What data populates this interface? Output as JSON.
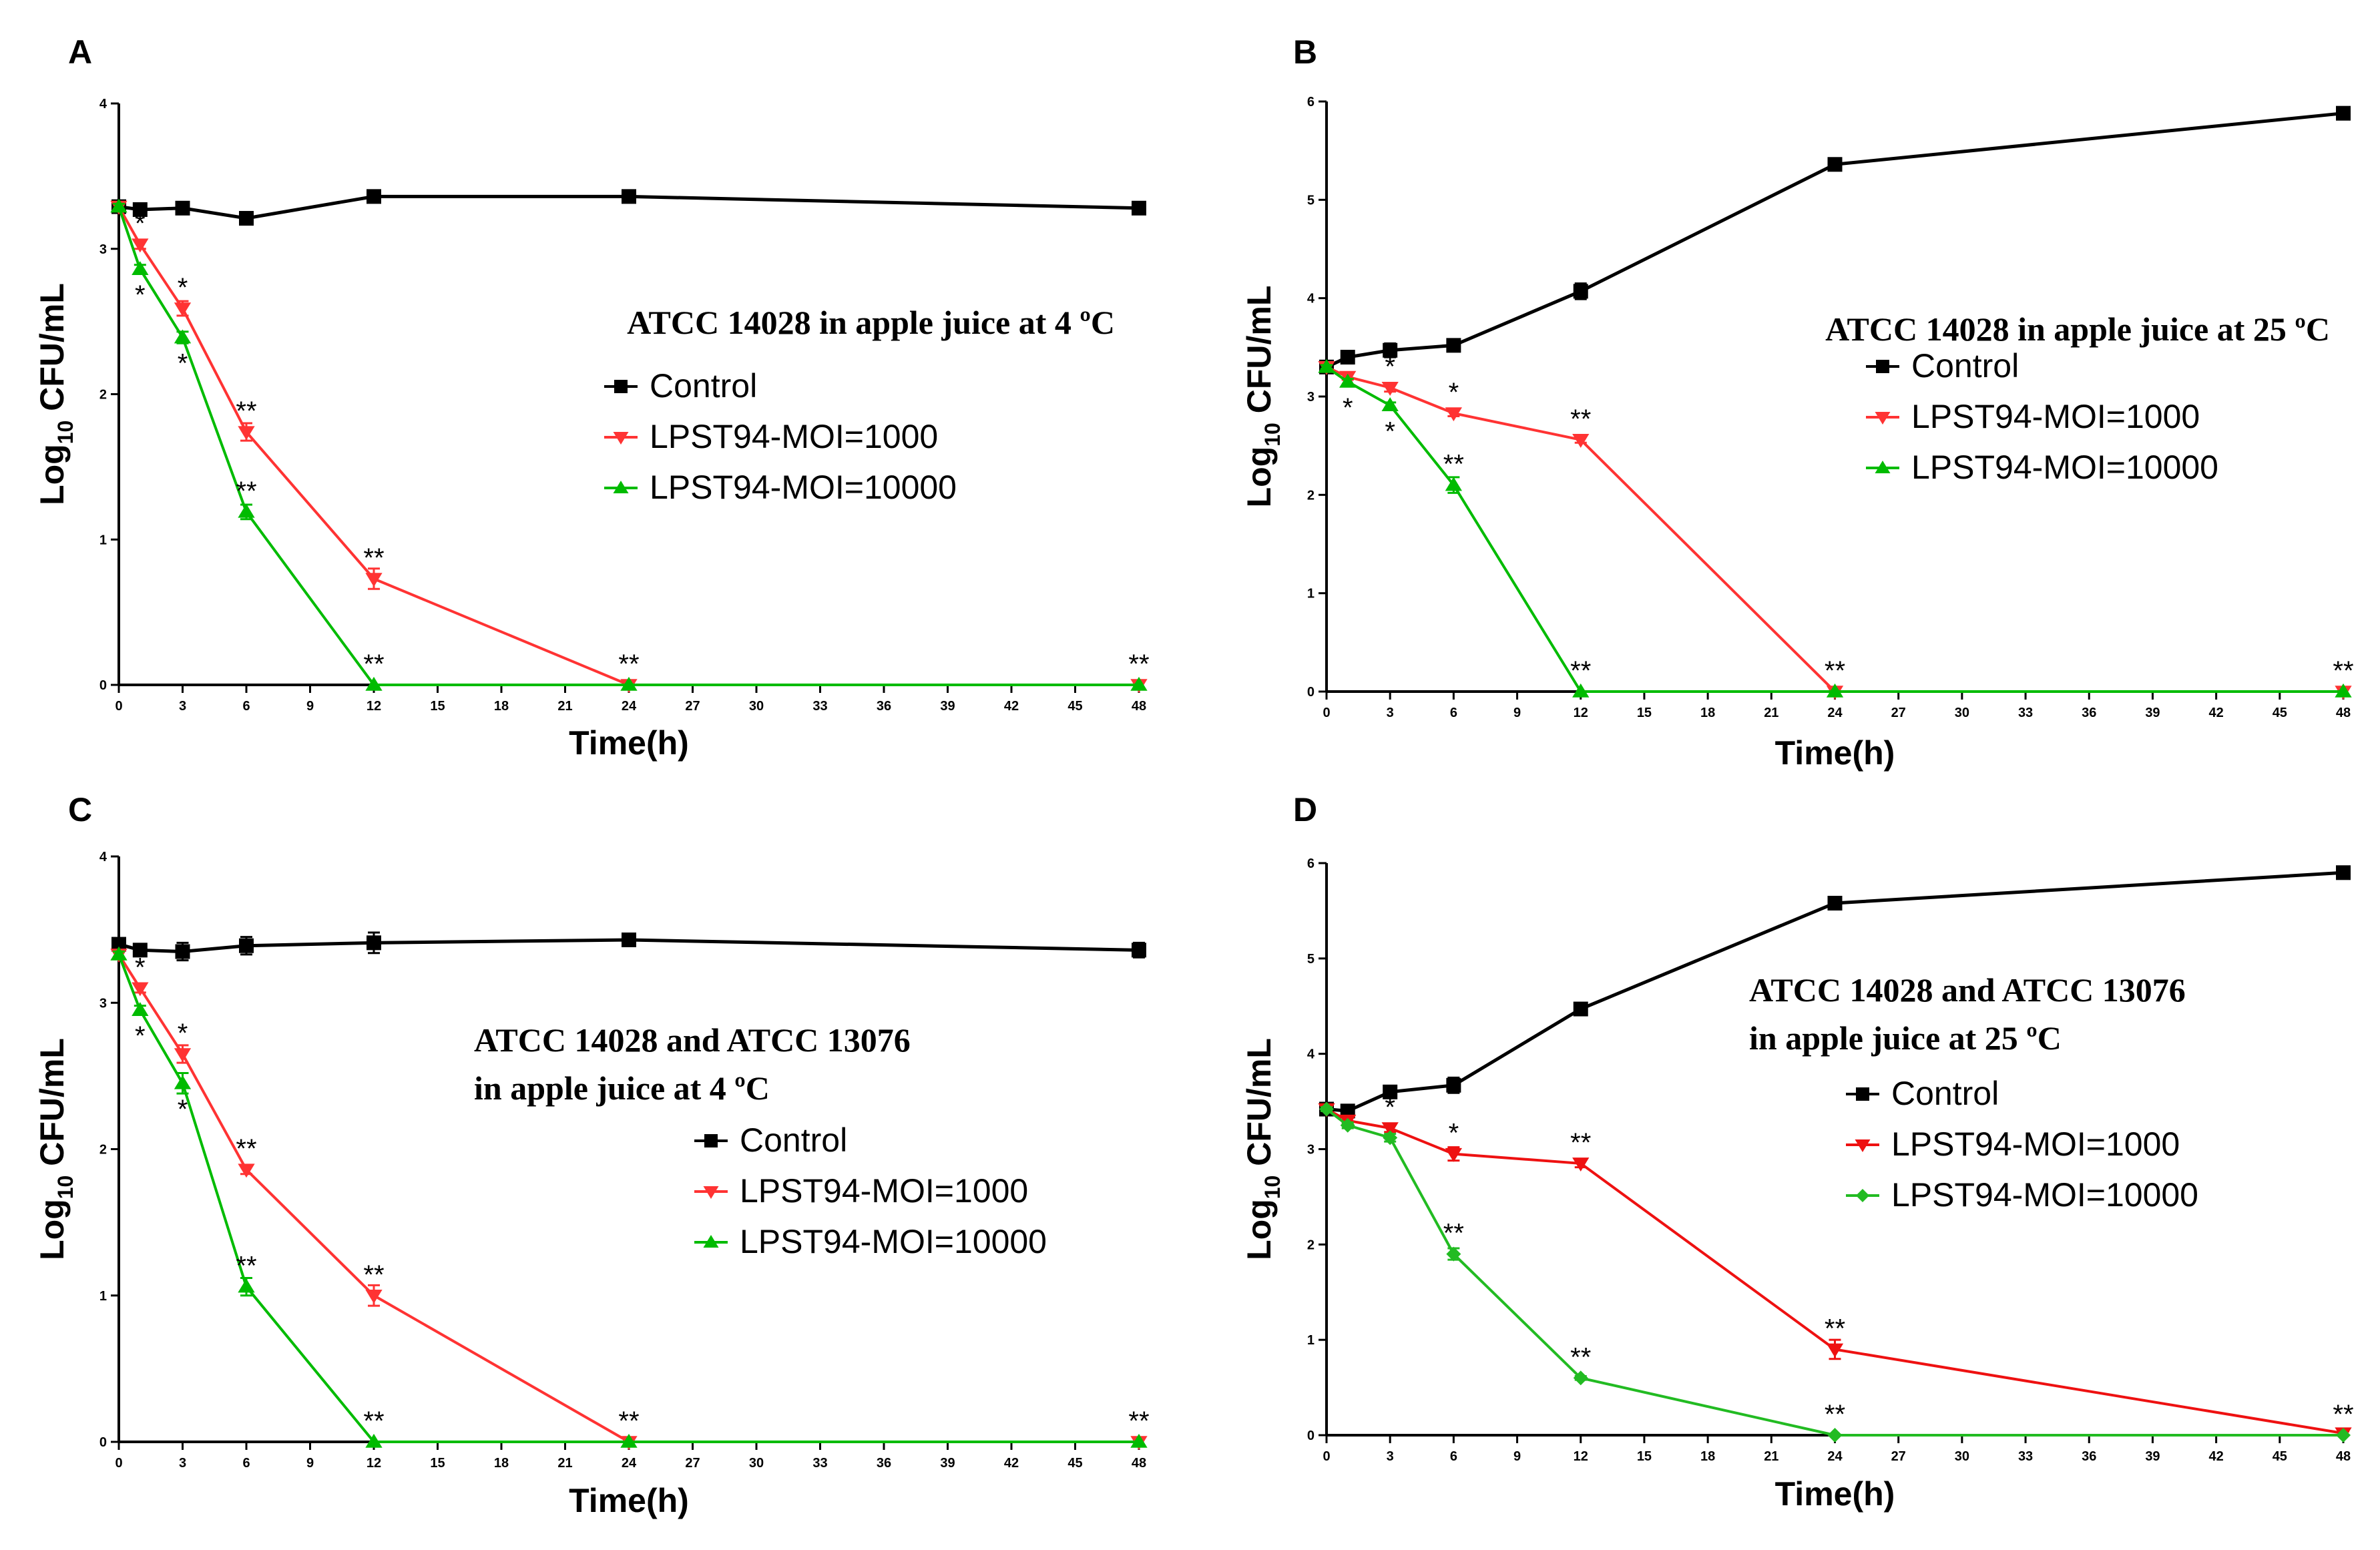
{
  "chart_data": [
    {
      "panel": "A",
      "type": "line",
      "title_lines": [
        "ATCC 14028 in apple juice at 4 ºC"
      ],
      "xlabel": "Time(h)",
      "ylabel": "Log10 CFU/mL",
      "ylabel_main": "Log",
      "ylabel_sub": "10",
      "ylabel_rest": " CFU/mL",
      "xlim": [
        0,
        48
      ],
      "ylim": [
        0,
        4
      ],
      "xticks": [
        0,
        3,
        6,
        9,
        12,
        15,
        18,
        21,
        24,
        27,
        30,
        33,
        36,
        39,
        42,
        45,
        48
      ],
      "yticks": [
        0,
        1,
        2,
        3,
        4
      ],
      "legend": [
        "Control",
        "LPST94-MOI=1000",
        "LPST94-MOI=10000"
      ],
      "series": [
        {
          "name": "Control",
          "color": "#000000",
          "marker": "square",
          "x": [
            0,
            1,
            3,
            6,
            12,
            24,
            48
          ],
          "y": [
            3.29,
            3.27,
            3.28,
            3.21,
            3.36,
            3.36,
            3.28
          ],
          "err": [
            0.03,
            0.02,
            0.04,
            0.02,
            0.02,
            0.02,
            0.02
          ]
        },
        {
          "name": "LPST94-MOI=1000",
          "color": "#ff3333",
          "marker": "triangle-down",
          "x": [
            0,
            1,
            3,
            6,
            12,
            24,
            48
          ],
          "y": [
            3.29,
            3.03,
            2.59,
            1.74,
            0.73,
            0.0,
            0.0
          ],
          "err": [
            0.02,
            0.03,
            0.05,
            0.06,
            0.07,
            0.0,
            0.0
          ]
        },
        {
          "name": "LPST94-MOI=10000",
          "color": "#00bb00",
          "marker": "triangle-up",
          "x": [
            0,
            1,
            3,
            6,
            12,
            24,
            48
          ],
          "y": [
            3.29,
            2.86,
            2.39,
            1.19,
            0.0,
            0.0,
            0.0
          ],
          "err": [
            0.02,
            0.03,
            0.04,
            0.05,
            0.0,
            0.0,
            0.0
          ]
        }
      ],
      "annotations": [
        {
          "x": 1,
          "y": 3.03,
          "text": "*",
          "pos": "above"
        },
        {
          "x": 1,
          "y": 2.86,
          "text": "*",
          "pos": "below"
        },
        {
          "x": 3,
          "y": 2.59,
          "text": "*",
          "pos": "above"
        },
        {
          "x": 3,
          "y": 2.39,
          "text": "*",
          "pos": "below"
        },
        {
          "x": 6,
          "y": 1.74,
          "text": "**",
          "pos": "above"
        },
        {
          "x": 6,
          "y": 1.19,
          "text": "**",
          "pos": "above"
        },
        {
          "x": 12,
          "y": 0.73,
          "text": "**",
          "pos": "above"
        },
        {
          "x": 12,
          "y": 0,
          "text": "**",
          "pos": "above"
        },
        {
          "x": 24,
          "y": 0,
          "text": "**",
          "pos": "above"
        },
        {
          "x": 48,
          "y": 0,
          "text": "**",
          "pos": "above"
        }
      ]
    },
    {
      "panel": "B",
      "type": "line",
      "title_lines": [
        "ATCC 14028 in apple juice at 25 ºC"
      ],
      "xlabel": "Time(h)",
      "ylabel": "Log10 CFU/mL",
      "ylabel_main": "Log",
      "ylabel_sub": "10",
      "ylabel_rest": " CFU/mL",
      "xlim": [
        0,
        48
      ],
      "ylim": [
        0,
        6
      ],
      "xticks": [
        0,
        3,
        6,
        9,
        12,
        15,
        18,
        21,
        24,
        27,
        30,
        33,
        36,
        39,
        42,
        45,
        48
      ],
      "yticks": [
        0,
        1,
        2,
        3,
        4,
        5,
        6
      ],
      "legend": [
        "Control",
        "LPST94-MOI=1000",
        "LPST94-MOI=10000"
      ],
      "series": [
        {
          "name": "Control",
          "color": "#000000",
          "marker": "square",
          "x": [
            0,
            1,
            3,
            6,
            12,
            24,
            48
          ],
          "y": [
            3.3,
            3.4,
            3.47,
            3.52,
            4.07,
            5.36,
            5.88
          ],
          "err": [
            0.03,
            0.06,
            0.07,
            0.03,
            0.08,
            0.06,
            0.03
          ]
        },
        {
          "name": "LPST94-MOI=1000",
          "color": "#ff3333",
          "marker": "triangle-down",
          "x": [
            0,
            1,
            3,
            6,
            12,
            24,
            48
          ],
          "y": [
            3.3,
            3.2,
            3.09,
            2.83,
            2.56,
            0.0,
            0.0
          ],
          "err": [
            0.02,
            0.03,
            0.04,
            0.03,
            0.03,
            0.0,
            0.0
          ]
        },
        {
          "name": "LPST94-MOI=10000",
          "color": "#00bb00",
          "marker": "triangle-up",
          "x": [
            0,
            1,
            3,
            6,
            12,
            24,
            48
          ],
          "y": [
            3.3,
            3.15,
            2.91,
            2.1,
            0.0,
            0.0,
            0.0
          ],
          "err": [
            0.02,
            0.03,
            0.03,
            0.08,
            0.0,
            0.0,
            0.0
          ]
        }
      ],
      "annotations": [
        {
          "x": 1,
          "y": 3.15,
          "text": "*",
          "pos": "below"
        },
        {
          "x": 3,
          "y": 3.09,
          "text": "*",
          "pos": "above"
        },
        {
          "x": 3,
          "y": 2.91,
          "text": "*",
          "pos": "below"
        },
        {
          "x": 6,
          "y": 2.83,
          "text": "*",
          "pos": "above"
        },
        {
          "x": 6,
          "y": 2.1,
          "text": "**",
          "pos": "above"
        },
        {
          "x": 12,
          "y": 2.56,
          "text": "**",
          "pos": "above"
        },
        {
          "x": 12,
          "y": 0,
          "text": "**",
          "pos": "above"
        },
        {
          "x": 24,
          "y": 0,
          "text": "**",
          "pos": "above"
        },
        {
          "x": 48,
          "y": 0,
          "text": "**",
          "pos": "above"
        }
      ]
    },
    {
      "panel": "C",
      "type": "line",
      "title_lines": [
        "ATCC 14028 and ATCC 13076",
        "in apple juice at 4 ºC"
      ],
      "xlabel": "Time(h)",
      "ylabel": "Log10 CFU/mL",
      "ylabel_main": "Log",
      "ylabel_sub": "10",
      "ylabel_rest": " CFU/mL",
      "xlim": [
        0,
        48
      ],
      "ylim": [
        0,
        4
      ],
      "xticks": [
        0,
        3,
        6,
        9,
        12,
        15,
        18,
        21,
        24,
        27,
        30,
        33,
        36,
        39,
        42,
        45,
        48
      ],
      "yticks": [
        0,
        1,
        2,
        3,
        4
      ],
      "legend": [
        "Control",
        "LPST94-MOI=1000",
        "LPST94-MOI=10000"
      ],
      "series": [
        {
          "name": "Control",
          "color": "#000000",
          "marker": "square",
          "x": [
            0,
            1,
            3,
            6,
            12,
            24,
            48
          ],
          "y": [
            3.4,
            3.36,
            3.35,
            3.39,
            3.41,
            3.43,
            3.36
          ],
          "err": [
            0.03,
            0.03,
            0.06,
            0.06,
            0.07,
            0.03,
            0.05
          ]
        },
        {
          "name": "LPST94-MOI=1000",
          "color": "#ff3333",
          "marker": "triangle-down",
          "x": [
            0,
            1,
            3,
            6,
            12,
            24,
            48
          ],
          "y": [
            3.33,
            3.1,
            2.65,
            1.86,
            1.0,
            0.0,
            0.0
          ],
          "err": [
            0.02,
            0.03,
            0.06,
            0.03,
            0.07,
            0.0,
            0.0
          ]
        },
        {
          "name": "LPST94-MOI=10000",
          "color": "#00bb00",
          "marker": "triangle-up",
          "x": [
            0,
            1,
            3,
            6,
            12,
            24,
            48
          ],
          "y": [
            3.33,
            2.95,
            2.45,
            1.06,
            0.0,
            0.0,
            0.0
          ],
          "err": [
            0.02,
            0.03,
            0.07,
            0.06,
            0.0,
            0.0,
            0.0
          ]
        }
      ],
      "annotations": [
        {
          "x": 1,
          "y": 3.1,
          "text": "*",
          "pos": "above"
        },
        {
          "x": 1,
          "y": 2.95,
          "text": "*",
          "pos": "below"
        },
        {
          "x": 3,
          "y": 2.65,
          "text": "*",
          "pos": "above"
        },
        {
          "x": 3,
          "y": 2.45,
          "text": "*",
          "pos": "below"
        },
        {
          "x": 6,
          "y": 1.86,
          "text": "**",
          "pos": "above"
        },
        {
          "x": 6,
          "y": 1.06,
          "text": "**",
          "pos": "above"
        },
        {
          "x": 12,
          "y": 1.0,
          "text": "**",
          "pos": "above"
        },
        {
          "x": 12,
          "y": 0,
          "text": "**",
          "pos": "above"
        },
        {
          "x": 24,
          "y": 0,
          "text": "**",
          "pos": "above"
        },
        {
          "x": 48,
          "y": 0,
          "text": "**",
          "pos": "above"
        }
      ]
    },
    {
      "panel": "D",
      "type": "line",
      "title_lines": [
        "ATCC 14028 and ATCC 13076",
        "in apple juice at 25 ºC"
      ],
      "xlabel": "Time(h)",
      "ylabel": "Log10 CFU/mL",
      "ylabel_main": "Log",
      "ylabel_sub": "10",
      "ylabel_rest": " CFU/mL",
      "xlim": [
        0,
        48
      ],
      "ylim": [
        0,
        6
      ],
      "xticks": [
        0,
        3,
        6,
        9,
        12,
        15,
        18,
        21,
        24,
        27,
        30,
        33,
        36,
        39,
        42,
        45,
        48
      ],
      "yticks": [
        0,
        1,
        2,
        3,
        4,
        5,
        6
      ],
      "legend": [
        "Control",
        "LPST94-MOI=1000",
        "LPST94-MOI=10000"
      ],
      "series": [
        {
          "name": "Control",
          "color": "#000000",
          "marker": "square",
          "x": [
            0,
            1,
            3,
            6,
            12,
            24,
            48
          ],
          "y": [
            3.42,
            3.4,
            3.6,
            3.67,
            4.47,
            5.58,
            5.9
          ],
          "err": [
            0.03,
            0.03,
            0.04,
            0.08,
            0.03,
            0.03,
            0.06
          ]
        },
        {
          "name": "LPST94-MOI=1000",
          "color": "#ee1111",
          "marker": "triangle-down",
          "x": [
            0,
            1,
            3,
            6,
            12,
            24,
            48
          ],
          "y": [
            3.42,
            3.3,
            3.22,
            2.95,
            2.85,
            0.9,
            0.02
          ],
          "err": [
            0.02,
            0.03,
            0.04,
            0.07,
            0.04,
            0.1,
            0.02
          ]
        },
        {
          "name": "LPST94-MOI=10000",
          "color": "#22bb22",
          "marker": "diamond",
          "x": [
            0,
            1,
            3,
            6,
            12,
            24,
            48
          ],
          "y": [
            3.42,
            3.25,
            3.12,
            1.9,
            0.6,
            0.0,
            0.0
          ],
          "err": [
            0.02,
            0.03,
            0.04,
            0.06,
            0.02,
            0.0,
            0.0
          ]
        }
      ],
      "annotations": [
        {
          "x": 3,
          "y": 3.22,
          "text": "*",
          "pos": "above"
        },
        {
          "x": 6,
          "y": 2.95,
          "text": "*",
          "pos": "above"
        },
        {
          "x": 6,
          "y": 1.9,
          "text": "**",
          "pos": "above"
        },
        {
          "x": 12,
          "y": 2.85,
          "text": "**",
          "pos": "above"
        },
        {
          "x": 12,
          "y": 0.6,
          "text": "**",
          "pos": "above"
        },
        {
          "x": 24,
          "y": 0.9,
          "text": "**",
          "pos": "above"
        },
        {
          "x": 24,
          "y": 0,
          "text": "**",
          "pos": "above"
        },
        {
          "x": 48,
          "y": 0,
          "text": "**",
          "pos": "above"
        }
      ]
    }
  ]
}
